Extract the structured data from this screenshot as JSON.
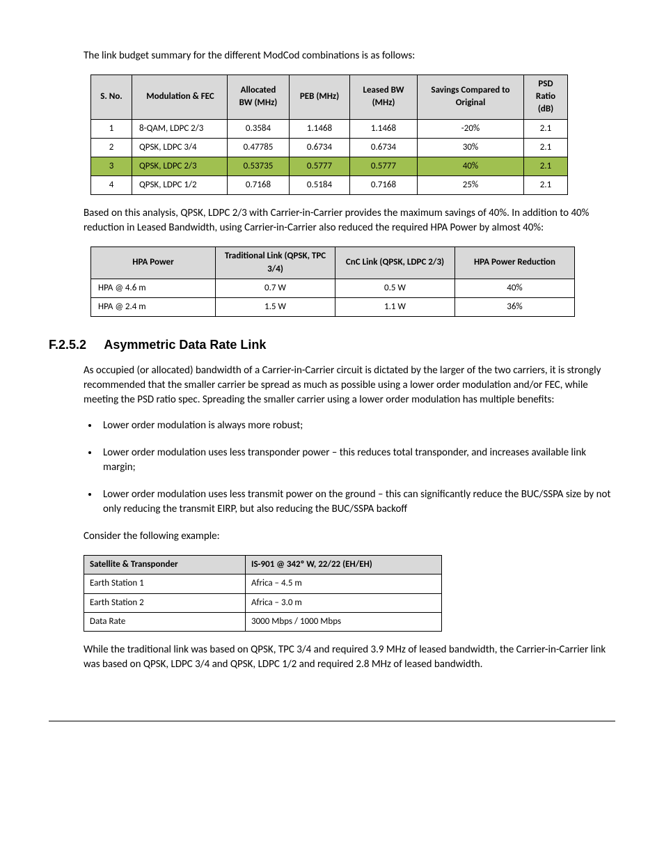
{
  "intro1": "The link budget summary for the different ModCod combinations is as follows:",
  "table1": {
    "headers": [
      "S. No.",
      "Modulation & FEC",
      "Allocated BW (MHz)",
      "PEB (MHz)",
      "Leased BW (MHz)",
      "Savings Compared to Original",
      "PSD Ratio (dB)"
    ],
    "rows": [
      [
        "1",
        "8-QAM, LDPC 2/3",
        "0.3584",
        "1.1468",
        "1.1468",
        "-20%",
        "2.1"
      ],
      [
        "2",
        "QPSK, LDPC 3/4",
        "0.47785",
        "0.6734",
        "0.6734",
        "30%",
        "2.1"
      ],
      [
        "3",
        "QPSK, LDPC 2/3",
        "0.53735",
        "0.5777",
        "0.5777",
        "40%",
        "2.1"
      ],
      [
        "4",
        "QPSK, LDPC 1/2",
        "0.7168",
        "0.5184",
        "0.7168",
        "25%",
        "2.1"
      ]
    ],
    "highlight_row": 2,
    "header_bg": "#d9d9d9",
    "highlight_bg": "#a0c050"
  },
  "para2": "Based on this analysis, QPSK, LDPC 2/3 with Carrier-in-Carrier provides the maximum savings of 40%. In addition to 40% reduction in Leased Bandwidth, using Carrier-in-Carrier also reduced the required HPA Power by almost 40%:",
  "table2": {
    "headers": [
      "HPA Power",
      "Traditional Link (QPSK, TPC 3/4)",
      "CnC Link (QPSK, LDPC 2/3)",
      "HPA Power Reduction"
    ],
    "rows": [
      [
        "HPA @ 4.6 m",
        "0.7 W",
        "0.5 W",
        "40%"
      ],
      [
        "HPA @ 2.4 m",
        "1.5 W",
        "1.1 W",
        "36%"
      ]
    ]
  },
  "section": {
    "num": "F.2.5.2",
    "title": "Asymmetric Data Rate Link"
  },
  "para3": "As occupied (or allocated) bandwidth of a Carrier-in-Carrier circuit is dictated by the larger of the two carriers, it is strongly recommended that the smaller carrier be spread as much as possible using a lower order modulation and/or FEC, while meeting the PSD ratio spec. Spreading the smaller carrier using a lower order modulation has multiple benefits:",
  "bullets": [
    "Lower order modulation is always more robust;",
    "Lower order modulation uses less transponder power – this reduces total transponder, and increases available link margin;",
    "Lower order modulation uses less transmit power on the ground – this can significantly reduce the BUC/SSPA size by not only reducing the transmit EIRP, but also reducing the BUC/SSPA backoff"
  ],
  "para4": "Consider the following example:",
  "table3": {
    "rows": [
      [
        "Satellite & Transponder",
        "IS-901 @ 342º W, 22/22 (EH/EH)"
      ],
      [
        "Earth Station 1",
        "Africa – 4.5 m"
      ],
      [
        "Earth Station 2",
        "Africa – 3.0 m"
      ],
      [
        "Data Rate",
        "3000 Mbps / 1000 Mbps"
      ]
    ],
    "header_row": 0
  },
  "para5": "While the traditional link was based on QPSK, TPC 3/4 and required 3.9 MHz of leased bandwidth, the Carrier-in-Carrier link was based on QPSK, LDPC 3/4 and QPSK, LDPC 1/2 and required 2.8 MHz of leased bandwidth."
}
